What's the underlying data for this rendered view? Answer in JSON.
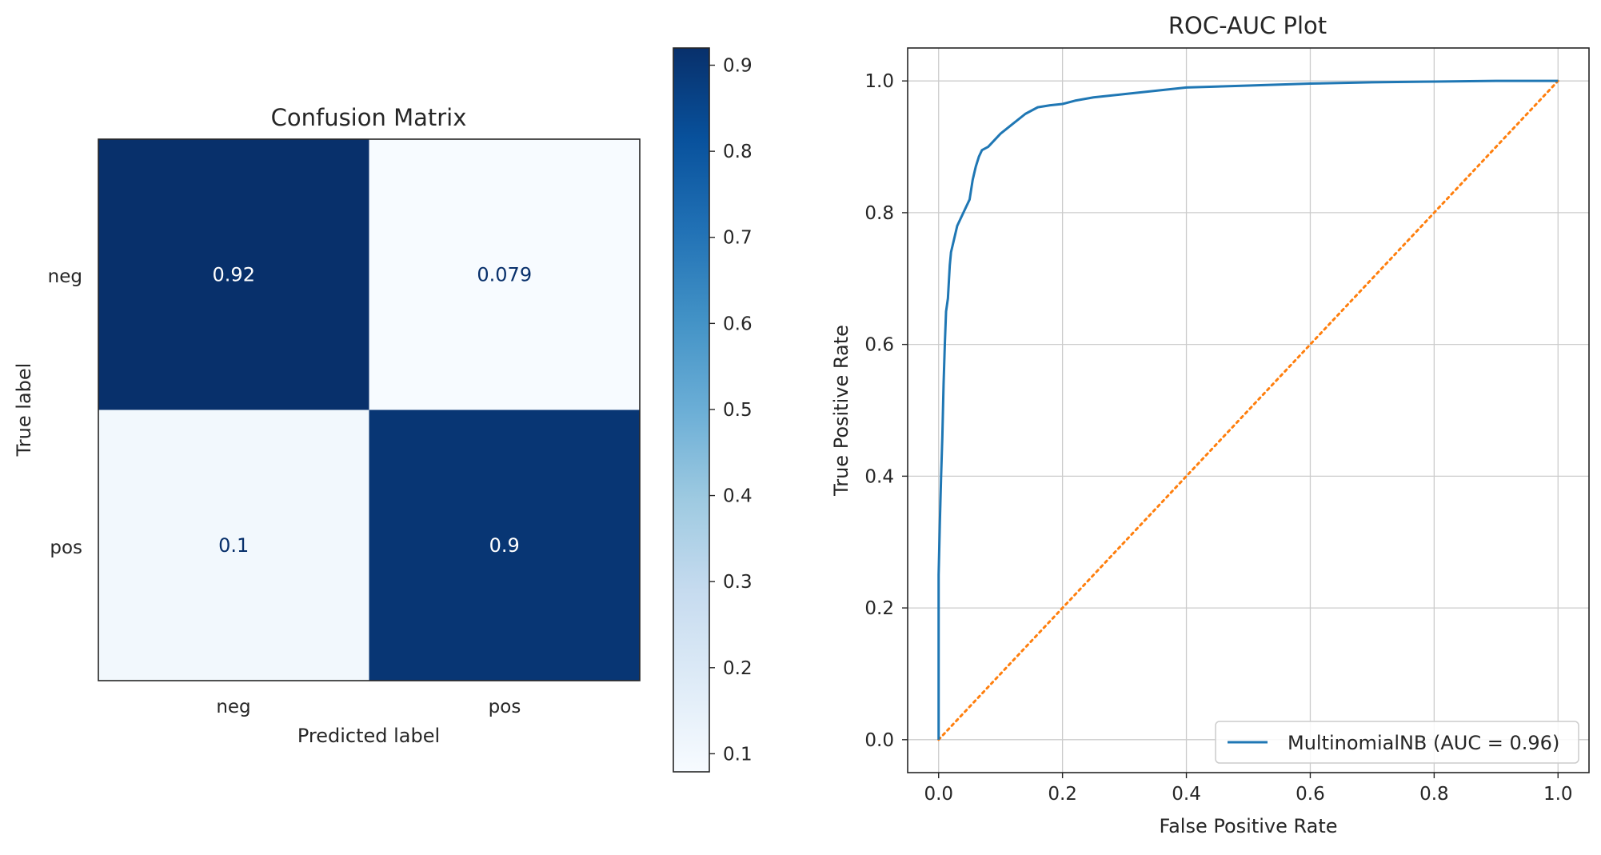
{
  "chart_data": [
    {
      "type": "heatmap",
      "title": "Confusion Matrix",
      "xlabel": "Predicted label",
      "ylabel": "True label",
      "x_categories": [
        "neg",
        "pos"
      ],
      "y_categories": [
        "neg",
        "pos"
      ],
      "matrix": [
        [
          0.92,
          0.079
        ],
        [
          0.1,
          0.9
        ]
      ],
      "cell_labels": [
        [
          "0.92",
          "0.079"
        ],
        [
          "0.1",
          "0.9"
        ]
      ],
      "colormap": "Blues",
      "colorbar": {
        "vmin": 0.079,
        "vmax": 0.92,
        "ticks": [
          0.1,
          0.2,
          0.3,
          0.4,
          0.5,
          0.6,
          0.7,
          0.8,
          0.9
        ],
        "tick_labels": [
          "0.1",
          "0.2",
          "0.3",
          "0.4",
          "0.5",
          "0.6",
          "0.7",
          "0.8",
          "0.9"
        ]
      }
    },
    {
      "type": "line",
      "title": "ROC-AUC Plot",
      "xlabel": "False Positive Rate",
      "ylabel": "True Positive Rate",
      "xlim": [
        -0.05,
        1.05
      ],
      "ylim": [
        -0.05,
        1.05
      ],
      "xticks": [
        0.0,
        0.2,
        0.4,
        0.6,
        0.8,
        1.0
      ],
      "xtick_labels": [
        "0.0",
        "0.2",
        "0.4",
        "0.6",
        "0.8",
        "1.0"
      ],
      "yticks": [
        0.0,
        0.2,
        0.4,
        0.6,
        0.8,
        1.0
      ],
      "ytick_labels": [
        "0.0",
        "0.2",
        "0.4",
        "0.6",
        "0.8",
        "1.0"
      ],
      "grid": true,
      "legend_position": "bottom-right",
      "series": [
        {
          "name": "MultinomialNB (AUC = 0.96)",
          "color": "#1f77b4",
          "style": "solid",
          "x": [
            0,
            0,
            0.002,
            0.004,
            0.006,
            0.008,
            0.01,
            0.012,
            0.015,
            0.018,
            0.02,
            0.025,
            0.03,
            0.035,
            0.04,
            0.045,
            0.05,
            0.055,
            0.06,
            0.065,
            0.07,
            0.08,
            0.09,
            0.1,
            0.12,
            0.14,
            0.16,
            0.18,
            0.2,
            0.22,
            0.25,
            0.3,
            0.35,
            0.4,
            0.5,
            0.6,
            0.7,
            0.8,
            0.9,
            1.0
          ],
          "y": [
            0,
            0.25,
            0.33,
            0.4,
            0.46,
            0.54,
            0.6,
            0.65,
            0.67,
            0.72,
            0.74,
            0.76,
            0.78,
            0.79,
            0.8,
            0.81,
            0.82,
            0.85,
            0.87,
            0.885,
            0.895,
            0.9,
            0.91,
            0.92,
            0.935,
            0.95,
            0.96,
            0.963,
            0.965,
            0.97,
            0.975,
            0.98,
            0.985,
            0.99,
            0.993,
            0.996,
            0.998,
            0.999,
            1.0,
            1.0
          ]
        },
        {
          "color": "#ff7f0e",
          "style": "dotted",
          "x": [
            0,
            1
          ],
          "y": [
            0,
            1
          ]
        }
      ]
    }
  ]
}
